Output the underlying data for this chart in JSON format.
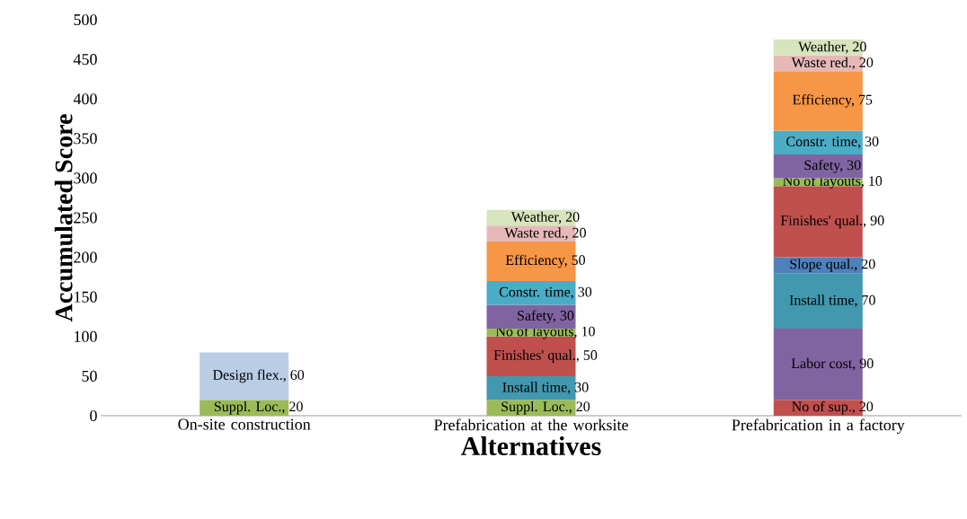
{
  "chart_data": {
    "type": "bar",
    "stacked": true,
    "xlabel": "Alternatives",
    "ylabel": "Accumulated Score",
    "categories": [
      "On-site construction",
      "Prefabrication at the worksite",
      "Prefabrication in a factory"
    ],
    "ylim": [
      0,
      500
    ],
    "yticks": [
      0,
      50,
      100,
      150,
      200,
      250,
      300,
      350,
      400,
      450,
      500
    ],
    "series": [
      {
        "color": "#c0504d",
        "values": [
          null,
          null,
          20
        ],
        "value_labels": [
          null,
          null,
          "No of sup., 20"
        ]
      },
      {
        "color": "#8064a2",
        "values": [
          null,
          null,
          90
        ],
        "value_labels": [
          null,
          null,
          "Labor cost, 90"
        ]
      },
      {
        "color": "#9bbb59",
        "values": [
          20,
          20,
          null
        ],
        "value_labels": [
          "Suppl. Loc., 20",
          "Suppl. Loc., 20",
          null
        ]
      },
      {
        "color": "#b9cde5",
        "values": [
          60,
          null,
          null
        ],
        "value_labels": [
          "Design flex., 60",
          null,
          null
        ]
      },
      {
        "color": "#4198af",
        "values": [
          null,
          30,
          70
        ],
        "value_labels": [
          null,
          "Install time, 30",
          "Install time, 70"
        ]
      },
      {
        "color": "#4f81bd",
        "values": [
          null,
          null,
          20
        ],
        "value_labels": [
          null,
          null,
          "Slope qual., 20"
        ]
      },
      {
        "color": "#c0504d",
        "values": [
          null,
          50,
          90
        ],
        "value_labels": [
          null,
          "Finishes' qual., 50",
          "Finishes' qual., 90"
        ]
      },
      {
        "color": "#9bbb59",
        "values": [
          null,
          10,
          10
        ],
        "value_labels": [
          null,
          "No of layouts, 10",
          "No of layouts, 10"
        ]
      },
      {
        "color": "#8064a2",
        "values": [
          null,
          30,
          30
        ],
        "value_labels": [
          null,
          "Safety, 30",
          "Safety, 30"
        ]
      },
      {
        "color": "#4bacc6",
        "values": [
          null,
          30,
          30
        ],
        "value_labels": [
          null,
          "Constr. time, 30",
          "Constr. time, 30"
        ]
      },
      {
        "color": "#f79646",
        "values": [
          null,
          50,
          75
        ],
        "value_labels": [
          null,
          "Efficiency, 50",
          "Efficiency, 75"
        ]
      },
      {
        "color": "#e6b9b8",
        "values": [
          null,
          20,
          20
        ],
        "value_labels": [
          null,
          "Waste red., 20",
          "Waste red., 20"
        ]
      },
      {
        "color": "#d7e4bd",
        "values": [
          null,
          20,
          20
        ],
        "value_labels": [
          null,
          "Weather, 20",
          "Weather, 20"
        ]
      }
    ]
  }
}
